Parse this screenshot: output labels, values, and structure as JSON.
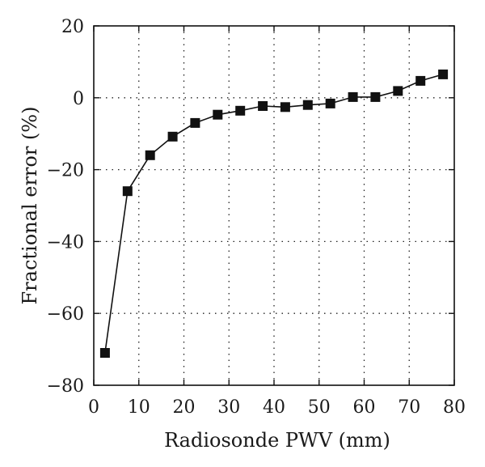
{
  "chart_data": {
    "type": "line",
    "xlabel": "Radiosonde PWV (mm)",
    "ylabel": "Fractional error (%)",
    "xlim": [
      0,
      80
    ],
    "ylim": [
      -80,
      20
    ],
    "xticks": [
      0,
      10,
      20,
      30,
      40,
      50,
      60,
      70,
      80
    ],
    "yticks": [
      -80,
      -60,
      -40,
      -20,
      0,
      20
    ],
    "xtick_labels": [
      "0",
      "10",
      "20",
      "30",
      "40",
      "50",
      "60",
      "70",
      "80"
    ],
    "ytick_labels": [
      "−80",
      "−60",
      "−40",
      "−20",
      "0",
      "20"
    ],
    "grid": true,
    "marker": "square",
    "colors": {
      "series": "#111111",
      "grid": "#222222"
    },
    "x": [
      2.5,
      7.5,
      12.5,
      17.5,
      22.5,
      27.5,
      32.5,
      37.5,
      42.5,
      47.5,
      52.5,
      57.5,
      62.5,
      67.5,
      72.5,
      77.5
    ],
    "y": [
      -71,
      -26,
      -16,
      -10.8,
      -7,
      -4.7,
      -3.6,
      -2.3,
      -2.6,
      -2.0,
      -1.6,
      0.2,
      0.2,
      1.9,
      4.7,
      6.5
    ]
  }
}
